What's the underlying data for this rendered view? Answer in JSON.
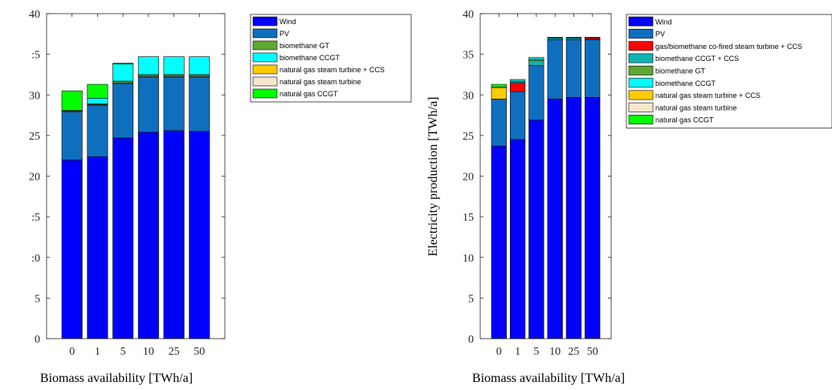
{
  "colors": {
    "Wind": "#0000ff",
    "PV": "#0f6fbf",
    "gas/biomethane co-fired steam turbine + CCS": "#ff0000",
    "biomethane CCGT + CCS": "#10b3b3",
    "biomethane GT": "#5fa832",
    "biomethane CCGT": "#00ffff",
    "natural gas steam turbine + CCS": "#ffcc00",
    "natural gas steam turbine": "#f7e6cc",
    "natural gas CCGT": "#00ff00"
  },
  "chart_data": [
    {
      "type": "bar",
      "stacked": true,
      "categories": [
        "0",
        "1",
        "5",
        "10",
        "25",
        "50"
      ],
      "xlabel": "Biomass availability [TWh/a]",
      "ylabel": "",
      "ylim": [
        0,
        40
      ],
      "yticks": [
        "0",
        "5",
        "10",
        "15",
        "20",
        "25",
        "30",
        "35",
        "40"
      ],
      "ytick_labels": [
        "0",
        "5",
        ":0",
        ":5",
        "20",
        "25",
        "30",
        ":5",
        "40"
      ],
      "legend": "outside-right",
      "legend_order": [
        "Wind",
        "PV",
        "biomethane GT",
        "biomethane CCGT",
        "natural gas steam turbine + CCS",
        "natural gas steam turbine",
        "natural gas CCGT"
      ],
      "series": [
        {
          "name": "Wind",
          "values": [
            22.0,
            22.4,
            24.7,
            25.4,
            25.6,
            25.5
          ]
        },
        {
          "name": "PV",
          "values": [
            5.9,
            6.3,
            6.7,
            6.8,
            6.6,
            6.7
          ]
        },
        {
          "name": "natural gas steam turbine",
          "values": [
            0.1,
            0.1,
            0.1,
            0.1,
            0.1,
            0.1
          ]
        },
        {
          "name": "natural gas steam turbine + CCS",
          "values": [
            0.0,
            0.0,
            0.0,
            0.0,
            0.0,
            0.0
          ]
        },
        {
          "name": "biomethane GT",
          "values": [
            0.1,
            0.1,
            0.2,
            0.2,
            0.2,
            0.2
          ]
        },
        {
          "name": "biomethane CCGT",
          "values": [
            0.0,
            0.7,
            2.1,
            2.2,
            2.2,
            2.2
          ]
        },
        {
          "name": "natural gas CCGT",
          "values": [
            2.4,
            1.7,
            0.1,
            0.0,
            0.0,
            0.0
          ]
        }
      ]
    },
    {
      "type": "bar",
      "stacked": true,
      "categories": [
        "0",
        "1",
        "5",
        "10",
        "25",
        "50"
      ],
      "xlabel": "Biomass availability [TWh/a]",
      "ylabel": "Electricity production [TWh/a]",
      "ylim": [
        0,
        40
      ],
      "yticks": [
        "0",
        "5",
        "10",
        "15",
        "20",
        "25",
        "30",
        "35",
        "40"
      ],
      "ytick_labels": [
        "0",
        "5",
        "10",
        "15",
        "20",
        "25",
        "30",
        "35",
        "40"
      ],
      "legend": "outside-right",
      "legend_order": [
        "Wind",
        "PV",
        "gas/biomethane co-fired steam turbine + CCS",
        "biomethane CCGT + CCS",
        "biomethane GT",
        "biomethane CCGT",
        "natural gas steam turbine + CCS",
        "natural gas steam turbine",
        "natural gas CCGT"
      ],
      "series": [
        {
          "name": "Wind",
          "values": [
            23.7,
            24.5,
            26.9,
            29.5,
            29.7,
            29.7
          ]
        },
        {
          "name": "PV",
          "values": [
            5.8,
            5.9,
            6.7,
            7.3,
            7.1,
            7.1
          ]
        },
        {
          "name": "natural gas steam turbine + CCS",
          "values": [
            1.4,
            0.0,
            0.0,
            0.0,
            0.0,
            0.0
          ]
        },
        {
          "name": "natural gas steam turbine",
          "values": [
            0.1,
            0.0,
            0.0,
            0.0,
            0.0,
            0.0
          ]
        },
        {
          "name": "gas/biomethane co-fired steam turbine + CCS",
          "values": [
            0.0,
            1.1,
            0.0,
            0.0,
            0.0,
            0.2
          ]
        },
        {
          "name": "biomethane CCGT + CCS",
          "values": [
            0.0,
            0.2,
            0.6,
            0.2,
            0.2,
            0.0
          ]
        },
        {
          "name": "biomethane GT",
          "values": [
            0.0,
            0.0,
            0.2,
            0.1,
            0.1,
            0.1
          ]
        },
        {
          "name": "biomethane CCGT",
          "values": [
            0.0,
            0.2,
            0.2,
            0.0,
            0.0,
            0.0
          ]
        },
        {
          "name": "natural gas CCGT",
          "values": [
            0.3,
            0.0,
            0.0,
            0.0,
            0.0,
            0.0
          ]
        }
      ]
    }
  ]
}
